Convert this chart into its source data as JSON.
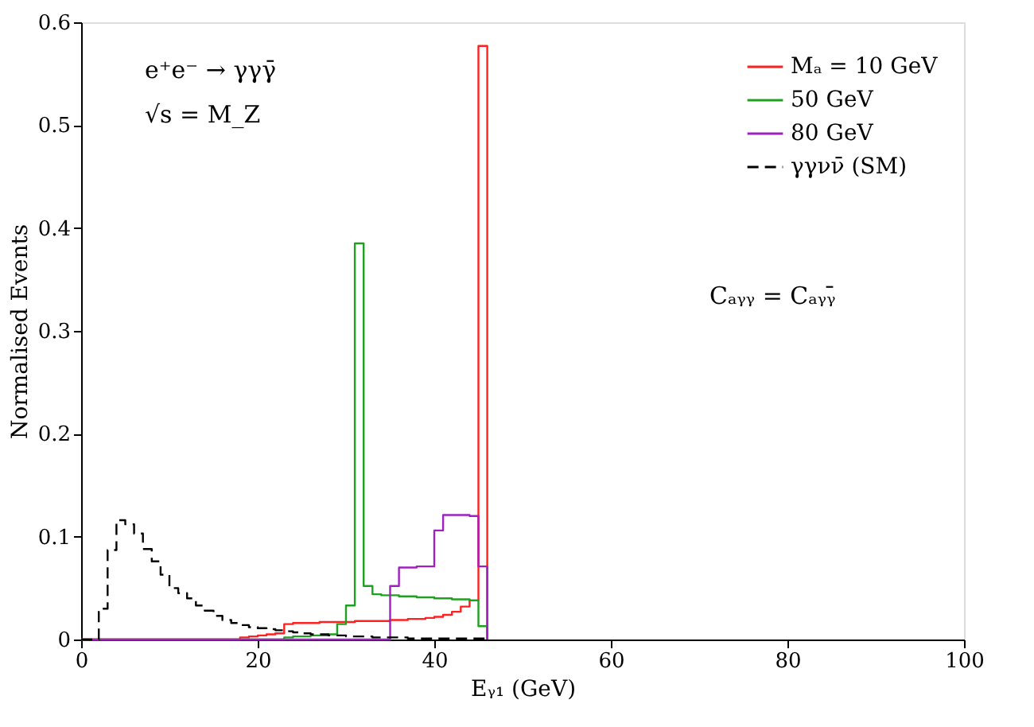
{
  "chart_data": {
    "type": "histogram",
    "xlabel": "Eᵧ₁ (GeV)",
    "ylabel": "Normalised Events",
    "annotations": [
      "e⁺e⁻ → γγγ̄",
      "√s = M_Z",
      "Cₐᵧᵧ = Cₐᵧᵧ̄"
    ],
    "bins": [
      0,
      1,
      2,
      3,
      4,
      5,
      6,
      7,
      8,
      9,
      10,
      11,
      12,
      13,
      14,
      15,
      16,
      17,
      18,
      19,
      20,
      21,
      22,
      23,
      24,
      25,
      26,
      27,
      28,
      29,
      30,
      31,
      32,
      33,
      34,
      35,
      36,
      37,
      38,
      39,
      40,
      41,
      42,
      43,
      44,
      45,
      46
    ],
    "series": [
      {
        "name": "Mₐ = 10 GeV",
        "color": "#ff2020",
        "line_style": "solid",
        "values": [
          0,
          0,
          0,
          0,
          0,
          0,
          0,
          0,
          0,
          0,
          0,
          0,
          0,
          0,
          0,
          0,
          0,
          0,
          0.002,
          0.003,
          0.004,
          0.005,
          0.006,
          0.015,
          0.016,
          0.016,
          0.016,
          0.017,
          0.017,
          0.017,
          0.017,
          0.018,
          0.018,
          0.018,
          0.018,
          0.019,
          0.019,
          0.02,
          0.02,
          0.021,
          0.022,
          0.024,
          0.027,
          0.032,
          0.038,
          0.577
        ]
      },
      {
        "name": "50 GeV",
        "color": "#20a020",
        "line_style": "solid",
        "values": [
          0,
          0,
          0,
          0,
          0,
          0,
          0,
          0,
          0,
          0,
          0,
          0,
          0,
          0,
          0,
          0,
          0,
          0,
          0,
          0,
          0,
          0,
          0,
          0.002,
          0.003,
          0.003,
          0.004,
          0.004,
          0.005,
          0.015,
          0.033,
          0.385,
          0.052,
          0.044,
          0.043,
          0.043,
          0.042,
          0.042,
          0.041,
          0.041,
          0.04,
          0.04,
          0.039,
          0.039,
          0.038,
          0.013
        ]
      },
      {
        "name": "80 GeV",
        "color": "#a020c0",
        "line_style": "solid",
        "values": [
          0,
          0,
          0,
          0,
          0,
          0,
          0,
          0,
          0,
          0,
          0,
          0,
          0,
          0,
          0,
          0,
          0,
          0,
          0,
          0,
          0,
          0,
          0,
          0,
          0,
          0,
          0,
          0,
          0,
          0,
          0,
          0,
          0,
          0,
          0,
          0.052,
          0.07,
          0.07,
          0.071,
          0.071,
          0.106,
          0.121,
          0.121,
          0.121,
          0.12,
          0.071
        ]
      },
      {
        "name": "γγνν̄ (SM)",
        "color": "#000000",
        "line_style": "dashed",
        "values": [
          0,
          0,
          0.03,
          0.087,
          0.116,
          0.112,
          0.103,
          0.088,
          0.076,
          0.063,
          0.05,
          0.045,
          0.04,
          0.033,
          0.028,
          0.023,
          0.019,
          0.016,
          0.014,
          0.012,
          0.011,
          0.01,
          0.009,
          0.008,
          0.007,
          0.006,
          0.005,
          0.005,
          0.004,
          0.004,
          0.003,
          0.003,
          0.003,
          0.002,
          0.002,
          0.002,
          0.002,
          0.001,
          0.001,
          0.001,
          0.001,
          0.001,
          0.001,
          0.001,
          0.001,
          0.001
        ]
      }
    ],
    "xlim": [
      0,
      100
    ],
    "xticks": [
      0,
      20,
      40,
      60,
      80,
      100
    ],
    "ylim": [
      0,
      0.6
    ],
    "yticks": [
      0,
      0.1,
      0.2,
      0.3,
      0.4,
      0.5,
      0.6
    ],
    "grid": false,
    "legend": "top right"
  }
}
